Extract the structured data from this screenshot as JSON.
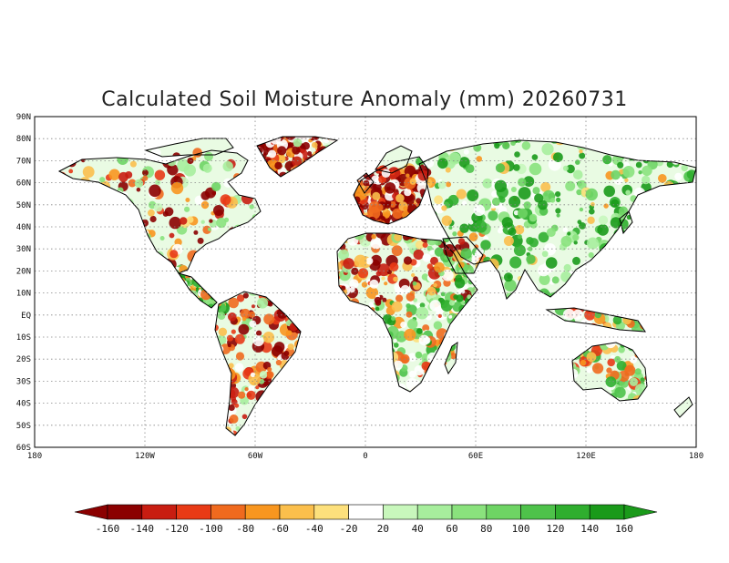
{
  "title": "Calculated Soil Moisture Anomaly (mm) 20260731",
  "lat_labels": [
    "90N",
    "80N",
    "70N",
    "60N",
    "50N",
    "40N",
    "30N",
    "20N",
    "10N",
    "EQ",
    "10S",
    "20S",
    "30S",
    "40S",
    "50S",
    "60S"
  ],
  "lon_labels": [
    "180",
    "120W",
    "60W",
    "0",
    "60E",
    "120E",
    "180"
  ],
  "colorbar": {
    "ticks": [
      "-160",
      "-140",
      "-120",
      "-100",
      "-80",
      "-60",
      "-40",
      "-20",
      "20",
      "40",
      "60",
      "80",
      "100",
      "120",
      "140",
      "160"
    ],
    "colors": [
      "#8b0000",
      "#c81d11",
      "#e83a16",
      "#f06a1e",
      "#f8961f",
      "#fbbf4c",
      "#fde07c",
      "#ffffff",
      "#c8f7bc",
      "#a7ee9d",
      "#8ae27d",
      "#6ed464",
      "#4ec24a",
      "#2fae2e",
      "#1a9a1a"
    ],
    "under_color": "#8b0000",
    "over_color": "#1a9a1a"
  },
  "palette": {
    "dry": [
      "#8b0000",
      "#c81d11",
      "#e83a16",
      "#f06a1e",
      "#f8961f",
      "#fbbf4c",
      "#fde07c"
    ],
    "wet": [
      "#c8f7bc",
      "#a7ee9d",
      "#8ae27d",
      "#6ed464",
      "#4ec24a",
      "#2fae2e",
      "#1a9a1a"
    ]
  }
}
